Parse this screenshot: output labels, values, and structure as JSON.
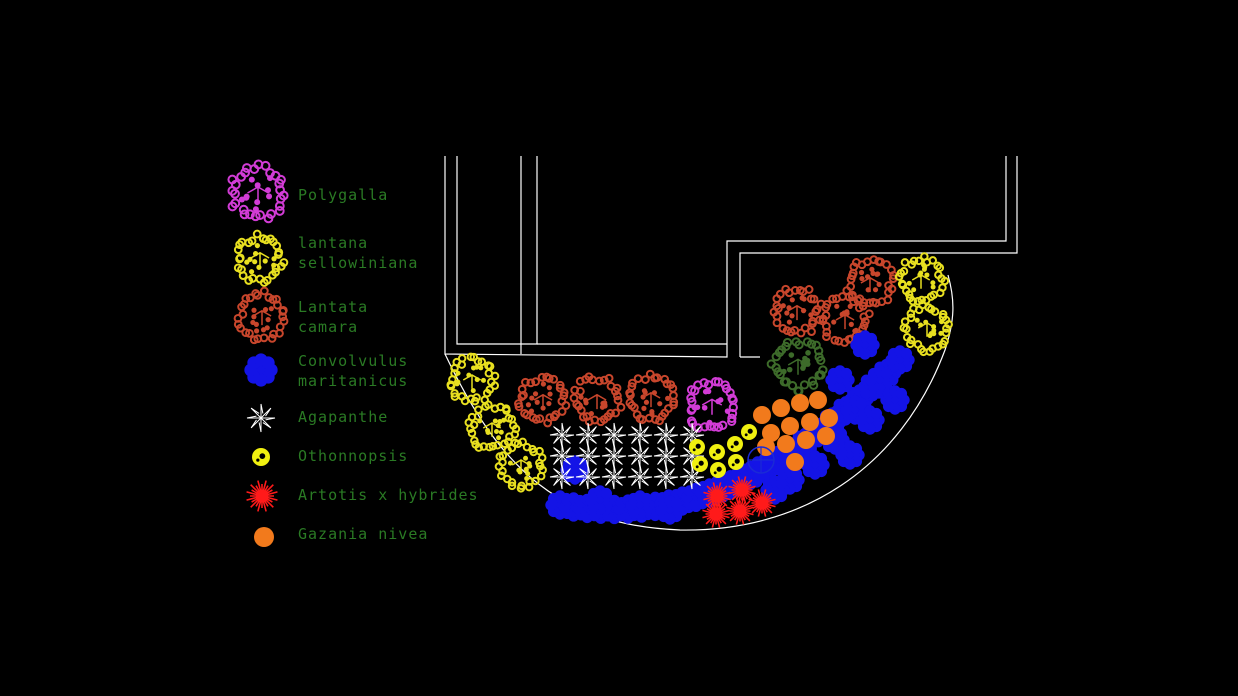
{
  "legend": [
    {
      "key": "polygalla",
      "lines": [
        "Polygalla"
      ],
      "symbol": "shrub",
      "color": "#d23cd6"
    },
    {
      "key": "lantana-s",
      "lines": [
        "lantana",
        "sellowiniana"
      ],
      "symbol": "shrub",
      "color": "#e8e020"
    },
    {
      "key": "lantata-c",
      "lines": [
        "Lantata",
        "camara"
      ],
      "symbol": "shrub",
      "color": "#c8462c"
    },
    {
      "key": "convolvulus",
      "lines": [
        "Convolvulus",
        "maritanicus"
      ],
      "symbol": "blob",
      "color": "#1414e6"
    },
    {
      "key": "agapanthe",
      "lines": [
        "Agapanthe"
      ],
      "symbol": "star",
      "color": "#ffffff"
    },
    {
      "key": "othonnopsis",
      "lines": [
        "Othonnopsis"
      ],
      "symbol": "flower",
      "color": "#f0f010"
    },
    {
      "key": "artotis",
      "lines": [
        "Artotis x hybrides"
      ],
      "symbol": "spiky",
      "color": "#ff1a1a"
    },
    {
      "key": "gazania",
      "lines": [
        "Gazania nivea"
      ],
      "symbol": "dot",
      "color": "#f27a1c"
    }
  ],
  "colors": {
    "background": "#000000",
    "label": "#2a7a24",
    "outline": "#ffffff",
    "extra_shrub": "#3d6b2a",
    "well": "#1a2ad6"
  }
}
